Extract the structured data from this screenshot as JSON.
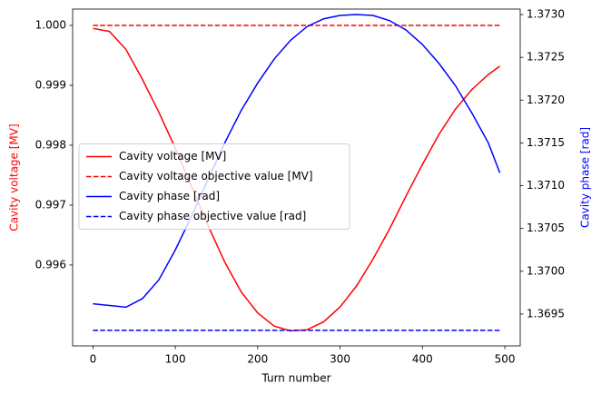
{
  "chart_data": {
    "type": "line",
    "xlabel": "Turn number",
    "ylabel": "Cavity voltage [MV]",
    "ylabel_color": "#ff0000",
    "y2label": "Cavity phase [rad]",
    "y2label_color": "#0000ff",
    "x": [
      0,
      20,
      40,
      60,
      80,
      100,
      120,
      140,
      160,
      180,
      200,
      220,
      240,
      260,
      280,
      300,
      320,
      340,
      360,
      380,
      400,
      420,
      440,
      460,
      480,
      494
    ],
    "series": [
      {
        "name": "Cavity voltage [MV]",
        "color": "#ff0000",
        "linestyle": "solid",
        "values": [
          0.99995,
          0.9999,
          0.9996,
          0.9991,
          0.99855,
          0.99795,
          0.9973,
          0.99665,
          0.99605,
          0.99555,
          0.9952,
          0.99498,
          0.9949,
          0.99492,
          0.99505,
          0.9953,
          0.99565,
          0.9961,
          0.9966,
          0.99715,
          0.99768,
          0.99818,
          0.9986,
          0.99893,
          0.99918,
          0.99932
        ]
      },
      {
        "name": "Cavity voltage objective value [MV]",
        "color": "#ff0000",
        "linestyle": "dashed",
        "values": [
          1,
          1,
          1,
          1,
          1,
          1,
          1,
          1,
          1,
          1,
          1,
          1,
          1,
          1,
          1,
          1,
          1,
          1,
          1,
          1,
          1,
          1,
          1,
          1,
          1,
          1
        ]
      },
      {
        "name": "Cavity phase [rad]",
        "color": "#0000ff",
        "linestyle": "solid",
        "axis": "y2",
        "values": [
          1.36962,
          1.3696,
          1.36958,
          1.36968,
          1.3699,
          1.37025,
          1.37065,
          1.37108,
          1.3715,
          1.37188,
          1.3722,
          1.37248,
          1.3727,
          1.37286,
          1.37295,
          1.37299,
          1.373,
          1.37299,
          1.37293,
          1.37282,
          1.37265,
          1.37243,
          1.37217,
          1.37185,
          1.3715,
          1.37115
        ]
      },
      {
        "name": "Cavity phase objective value [rad]",
        "color": "#0000ff",
        "linestyle": "dashed",
        "axis": "y2",
        "values": [
          1.36931,
          1.36931,
          1.36931,
          1.36931,
          1.36931,
          1.36931,
          1.36931,
          1.36931,
          1.36931,
          1.36931,
          1.36931,
          1.36931,
          1.36931,
          1.36931,
          1.36931,
          1.36931,
          1.36931,
          1.36931,
          1.36931,
          1.36931,
          1.36931,
          1.36931,
          1.36931,
          1.36931,
          1.36931,
          1.36931
        ]
      }
    ],
    "xlim": [
      -24.7,
      518.7
    ],
    "xticks": [
      0,
      100,
      200,
      300,
      400,
      500
    ],
    "ylim": [
      0.99465,
      1.000273
    ],
    "yticks": [
      0.996,
      0.997,
      0.998,
      0.999,
      {
        "value": 1,
        "label": "1.000"
      }
    ],
    "y2lim": [
      1.369128,
      1.373064
    ],
    "y2ticks": [
      1.3695,
      {
        "value": 1.37,
        "label": "1.3700"
      },
      1.3705,
      {
        "value": 1.371,
        "label": "1.3710"
      },
      1.3715,
      {
        "value": 1.372,
        "label": "1.3720"
      },
      1.3725,
      {
        "value": 1.373,
        "label": "1.3730"
      }
    ],
    "legend": "center left",
    "grid": false
  }
}
